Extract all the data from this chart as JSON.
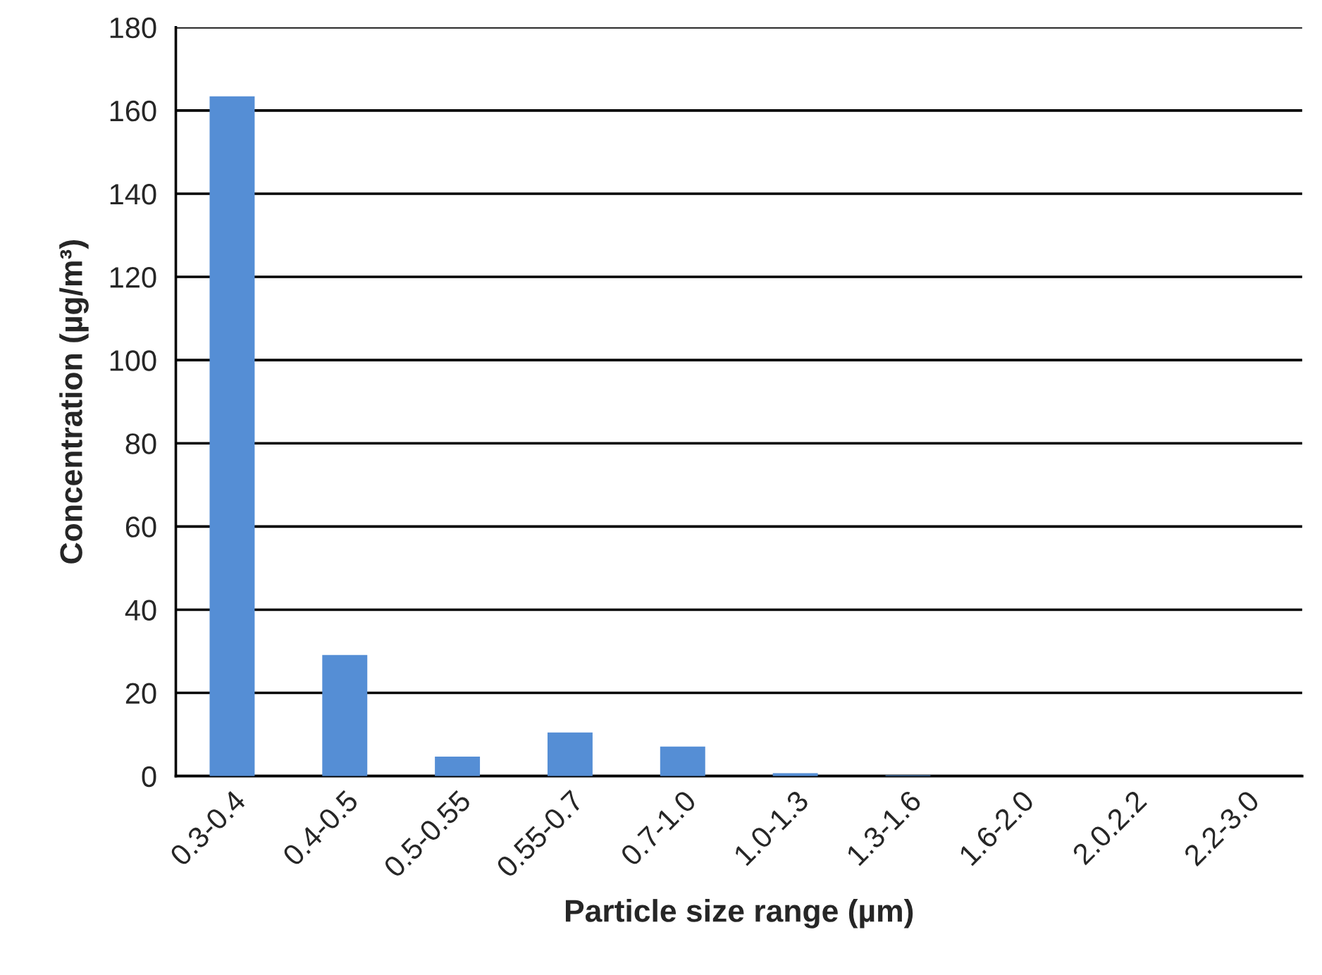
{
  "chart_data": {
    "type": "bar",
    "xlabel": "Particle size range (µm)",
    "ylabel": "Concentration (µg/m³)",
    "categories": [
      "0.3-0.4",
      "0.4-0.5",
      "0.5-0.55",
      "0.55-0.7",
      "0.7-1.0",
      "1.0-1.3",
      "1.3-1.6",
      "1.6-2.0",
      "2.0.2.2",
      "2.2-3.0"
    ],
    "values": [
      163.4,
      29.1,
      4.7,
      10.5,
      7.1,
      0.7,
      0.2,
      0,
      0,
      0
    ],
    "color": "#558ed5",
    "ylim": [
      0,
      180
    ],
    "yticks": [
      0,
      20,
      40,
      60,
      80,
      100,
      120,
      140,
      160,
      180
    ],
    "grid": "y",
    "legend": false
  }
}
